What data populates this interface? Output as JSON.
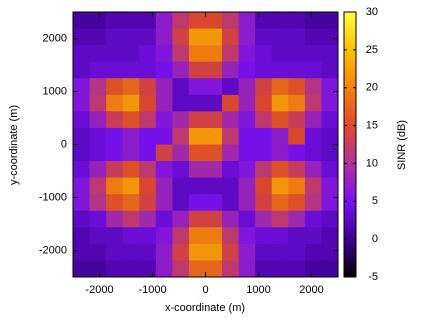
{
  "chart_data": {
    "type": "heatmap",
    "x_label": "x-coordinate (m)",
    "y_label": "y-coordinate (m)",
    "colorbar_label": "SINR (dB)",
    "xlim": [
      -2500,
      2500
    ],
    "ylim": [
      -2500,
      2500
    ],
    "xticks": [
      -2000,
      -1000,
      0,
      1000,
      2000
    ],
    "yticks": [
      -2000,
      -1000,
      0,
      1000,
      2000
    ],
    "clim": [
      -5,
      30
    ],
    "cticks": [
      -5,
      0,
      5,
      10,
      15,
      20,
      25,
      30
    ],
    "colormap": [
      "#000000",
      "#3c0090",
      "#7a10f0",
      "#b030a0",
      "#e04830",
      "#f58010",
      "#ffc000",
      "#ffff40"
    ],
    "z": [
      [
        1,
        1,
        2,
        2,
        2,
        7,
        12,
        15,
        15,
        12,
        7,
        2,
        2,
        2,
        1,
        1
      ],
      [
        2,
        2,
        3,
        3,
        3,
        7,
        14,
        22,
        22,
        14,
        7,
        3,
        3,
        3,
        2,
        2
      ],
      [
        3,
        3,
        3,
        3,
        4,
        6,
        12,
        20,
        20,
        12,
        6,
        4,
        3,
        3,
        3,
        3
      ],
      [
        3,
        4,
        4,
        4,
        4,
        5,
        8,
        14,
        14,
        8,
        5,
        4,
        4,
        4,
        4,
        3
      ],
      [
        6,
        11,
        16,
        18,
        14,
        8,
        3,
        6,
        6,
        3,
        8,
        14,
        18,
        16,
        11,
        6
      ],
      [
        6,
        12,
        20,
        22,
        15,
        8,
        3,
        3,
        3,
        15,
        8,
        15,
        22,
        20,
        12,
        6
      ],
      [
        4,
        8,
        13,
        16,
        12,
        6,
        9,
        14,
        14,
        9,
        6,
        12,
        16,
        13,
        8,
        4
      ],
      [
        3,
        4,
        5,
        7,
        5,
        5,
        12,
        22,
        22,
        12,
        5,
        5,
        7,
        15,
        4,
        3
      ],
      [
        3,
        4,
        5,
        7,
        5,
        14,
        9,
        16,
        16,
        9,
        5,
        5,
        7,
        5,
        4,
        3
      ],
      [
        4,
        8,
        13,
        16,
        12,
        6,
        4,
        9,
        9,
        4,
        6,
        12,
        16,
        13,
        8,
        4
      ],
      [
        6,
        12,
        20,
        22,
        15,
        8,
        3,
        3,
        3,
        3,
        8,
        15,
        22,
        20,
        12,
        6
      ],
      [
        6,
        11,
        16,
        18,
        14,
        8,
        3,
        5,
        5,
        3,
        8,
        14,
        18,
        16,
        11,
        6
      ],
      [
        3,
        4,
        9,
        12,
        9,
        4,
        8,
        14,
        14,
        8,
        4,
        9,
        12,
        9,
        4,
        3
      ],
      [
        2,
        3,
        3,
        4,
        4,
        6,
        12,
        20,
        20,
        12,
        6,
        4,
        4,
        3,
        3,
        2
      ],
      [
        2,
        2,
        3,
        3,
        3,
        7,
        14,
        22,
        22,
        14,
        7,
        3,
        3,
        3,
        2,
        2
      ],
      [
        1,
        1,
        2,
        2,
        2,
        7,
        12,
        18,
        18,
        12,
        7,
        2,
        2,
        2,
        1,
        1
      ]
    ]
  }
}
